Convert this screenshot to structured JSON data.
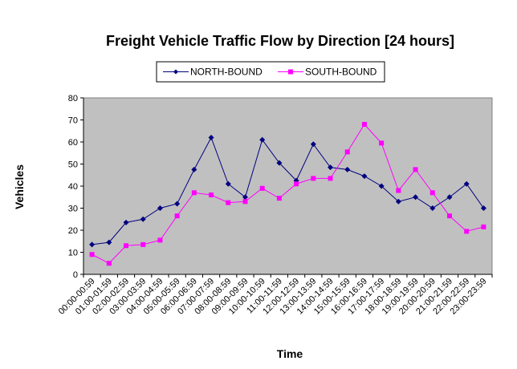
{
  "chart_data": {
    "type": "line",
    "title": "Freight Vehicle Traffic Flow by Direction [24 hours]",
    "xlabel": "Time",
    "ylabel": "Vehicles",
    "ylim": [
      0,
      80
    ],
    "yticks": [
      0,
      10,
      20,
      30,
      40,
      50,
      60,
      70,
      80
    ],
    "grid": false,
    "legend_position": "top",
    "plot_background": "#c0c0c0",
    "categories": [
      "00:00-00:59",
      "01:00-01:59",
      "02:00-02:59",
      "03:00-03:59",
      "04:00-04:59",
      "05:00-05:59",
      "06:00-06:59",
      "07:00-07:59",
      "08:00-08:59",
      "09:00-09:59",
      "10:00-10:59",
      "11:00-11:59",
      "12:00-12:59",
      "13:00-13:59",
      "14:00-14:59",
      "15:00-15:59",
      "16:00-16:59",
      "17:00-17:59",
      "18:00-18:59",
      "19:00-19:59",
      "20:00-20:59",
      "21:00-21:59",
      "22:00-22:59",
      "23:00-23:59"
    ],
    "series": [
      {
        "name": "NORTH-BOUND",
        "color": "#000080",
        "marker": "diamond",
        "values": [
          13.5,
          14.5,
          23.5,
          25,
          30,
          32,
          47.5,
          62,
          41,
          35,
          61,
          50.5,
          42.5,
          59,
          48.5,
          47.5,
          44.5,
          40,
          33,
          35,
          30,
          35,
          41,
          30
        ]
      },
      {
        "name": "SOUTH-BOUND",
        "color": "#ff00ff",
        "marker": "square",
        "values": [
          9,
          5,
          13,
          13.5,
          15.5,
          26.5,
          37,
          36,
          32.5,
          33,
          39,
          34.5,
          41,
          43.5,
          43.5,
          55.5,
          68,
          59.5,
          38,
          47.5,
          37,
          26.5,
          19.5,
          21.5
        ]
      }
    ]
  }
}
